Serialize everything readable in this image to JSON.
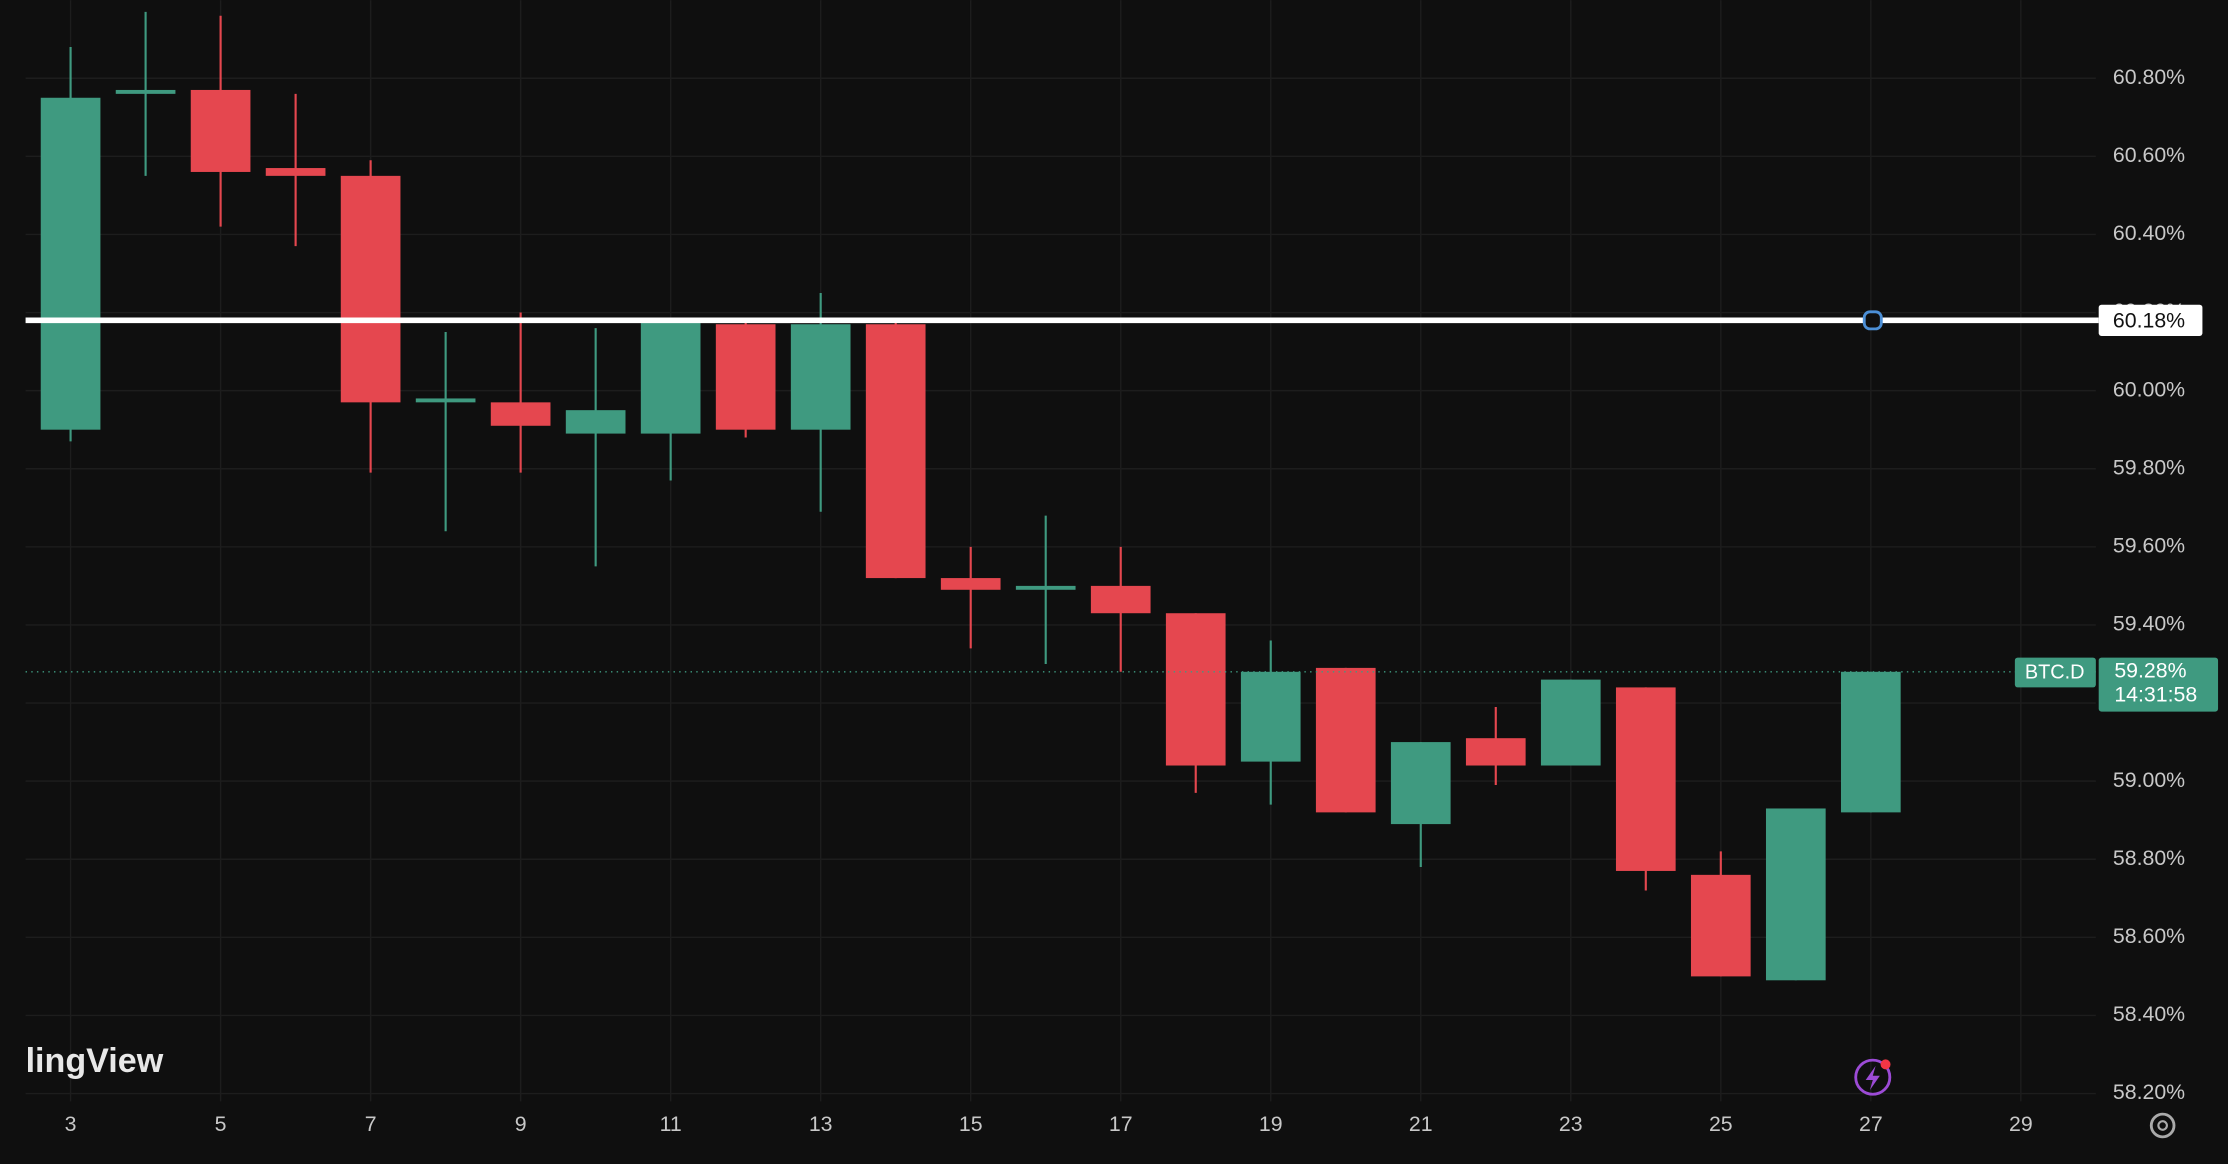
{
  "chart_data": {
    "type": "candlestick",
    "x": [
      3,
      4,
      5,
      6,
      7,
      8,
      9,
      10,
      11,
      12,
      13,
      14,
      15,
      16,
      17,
      18,
      19,
      20,
      21,
      22,
      23,
      24,
      25,
      26,
      27
    ],
    "open": [
      59.9,
      60.76,
      60.77,
      60.57,
      60.55,
      59.97,
      59.97,
      59.89,
      59.89,
      60.17,
      59.9,
      60.17,
      59.52,
      59.49,
      59.5,
      59.43,
      59.05,
      59.29,
      58.89,
      59.11,
      59.04,
      59.24,
      58.76,
      58.49,
      58.92
    ],
    "high": [
      60.88,
      60.97,
      60.96,
      60.76,
      60.59,
      60.15,
      60.2,
      60.16,
      60.18,
      60.18,
      60.25,
      60.18,
      59.6,
      59.68,
      59.6,
      59.43,
      59.36,
      59.29,
      59.1,
      59.19,
      59.26,
      59.24,
      58.82,
      58.93,
      59.28
    ],
    "low": [
      59.87,
      60.55,
      60.42,
      60.37,
      59.79,
      59.64,
      59.79,
      59.55,
      59.77,
      59.88,
      59.69,
      59.52,
      59.34,
      59.3,
      59.28,
      58.97,
      58.94,
      58.92,
      58.78,
      58.99,
      59.04,
      58.72,
      58.5,
      58.49,
      58.92
    ],
    "close": [
      60.75,
      60.77,
      60.56,
      60.55,
      59.97,
      59.98,
      59.91,
      59.95,
      60.18,
      59.9,
      60.17,
      59.52,
      59.49,
      59.5,
      59.43,
      59.04,
      59.28,
      58.92,
      59.1,
      59.04,
      59.26,
      58.77,
      58.5,
      58.93,
      59.28
    ],
    "up_color": "#3f9a80",
    "down_color": "#e5474f",
    "xlim": [
      2.4,
      30
    ],
    "xticks": [
      3,
      5,
      7,
      9,
      11,
      13,
      15,
      17,
      19,
      21,
      23,
      25,
      27,
      29
    ],
    "ylim": [
      58.18,
      61.0
    ],
    "yticks": [
      {
        "value": 58.2,
        "label": "58.20%"
      },
      {
        "value": 58.4,
        "label": "58.40%"
      },
      {
        "value": 58.6,
        "label": "58.60%"
      },
      {
        "value": 58.8,
        "label": "58.80%"
      },
      {
        "value": 59.0,
        "label": "59.00%"
      },
      {
        "value": 59.2,
        "label": "59.20%"
      },
      {
        "value": 59.4,
        "label": "59.40%"
      },
      {
        "value": 59.6,
        "label": "59.60%"
      },
      {
        "value": 59.8,
        "label": "59.80%"
      },
      {
        "value": 60.0,
        "label": "60.00%"
      },
      {
        "value": 60.2,
        "label": "60.20%"
      },
      {
        "value": 60.4,
        "label": "60.40%"
      },
      {
        "value": 60.6,
        "label": "60.60%"
      },
      {
        "value": 60.8,
        "label": "60.80%"
      }
    ],
    "grid": true,
    "hline": {
      "value": 60.18,
      "label": "60.18%"
    },
    "last_price": {
      "symbol": "BTC.D",
      "value": 59.28,
      "label": "59.28%",
      "countdown": "14:31:58"
    },
    "watermark": "lingView"
  }
}
